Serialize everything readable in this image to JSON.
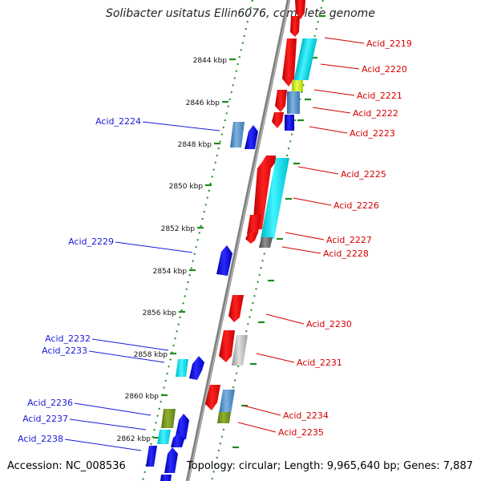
{
  "title": "Solibacter usitatus Ellin6076, complete genome",
  "accession": "Accession: NC_008536",
  "topology": "Topology: circular; Length: 9,965,640 bp; Genes: 7,887",
  "ticks": [
    "2844 kbp",
    "2846 kbp",
    "2848 kbp",
    "2850 kbp",
    "2852 kbp",
    "2854 kbp",
    "2856 kbp",
    "2858 kbp",
    "2860 kbp",
    "2862 kbp"
  ],
  "genes_forward": [
    "Acid_2219",
    "Acid_2220",
    "Acid_2221",
    "Acid_2222",
    "Acid_2223",
    "Acid_2225",
    "Acid_2226",
    "Acid_2227",
    "Acid_2228",
    "Acid_2230",
    "Acid_2231",
    "Acid_2234",
    "Acid_2235"
  ],
  "genes_reverse": [
    "Acid_2224",
    "Acid_2229",
    "Acid_2232",
    "Acid_2233",
    "Acid_2236",
    "Acid_2237",
    "Acid_2238"
  ],
  "colors": {
    "forward_label": "#d40000",
    "reverse_label": "#1a1adc",
    "axis": "#808080",
    "track_dots": "#1f8a1f"
  }
}
